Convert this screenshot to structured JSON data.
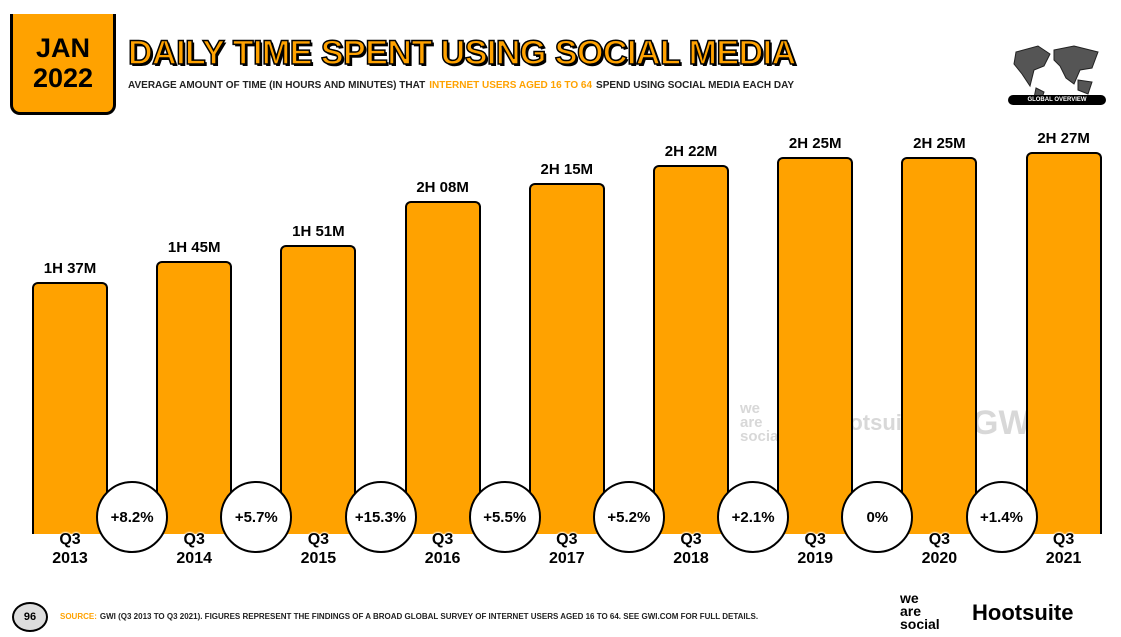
{
  "header": {
    "date": [
      "JAN",
      "2022"
    ],
    "global_overview": "GLOBAL OVERVIEW"
  },
  "chart_data": {
    "type": "bar",
    "title": "DAILY TIME SPENT USING SOCIAL MEDIA",
    "subtitle": [
      "AVERAGE AMOUNT OF TIME (IN HOURS AND MINUTES) THAT",
      "INTERNET USERS AGED 16 TO 64",
      "SPEND USING SOCIAL MEDIA EACH DAY"
    ],
    "categories": [
      "Q3\n2013",
      "Q3\n2014",
      "Q3\n2015",
      "Q3\n2016",
      "Q3\n2017",
      "Q3\n2018",
      "Q3\n2019",
      "Q3\n2020",
      "Q3\n2021"
    ],
    "values": [
      97,
      105,
      111,
      128,
      135,
      142,
      145,
      145,
      147
    ],
    "value_labels": [
      "1H 37M",
      "1H 45M",
      "1H 51M",
      "2H 08M",
      "2H 15M",
      "2H 22M",
      "2H 25M",
      "2H 25M",
      "2H 27M"
    ],
    "color": "#ffa200",
    "changes": {
      "values": [
        8.2,
        5.7,
        15.3,
        5.5,
        5.2,
        2.1,
        0,
        1.4
      ],
      "value_labels": [
        "+8.2%",
        "+5.7%",
        "+15.3%",
        "+5.5%",
        "+5.2%",
        "+2.1%",
        "0%",
        "+1.4%"
      ]
    }
  },
  "watermark": [
    "we\nare\nsocial",
    "Hootsuite",
    "GWI."
  ],
  "footer": {
    "page": "96",
    "source_label": "SOURCE:",
    "source": "GWI (Q3 2013 TO Q3 2021). FIGURES REPRESENT THE FINDINGS OF A BROAD GLOBAL SURVEY OF INTERNET USERS AGED 16 TO 64. SEE GWI.COM FOR FULL DETAILS.",
    "logos": [
      "we\nare\nsocial",
      "Hootsuite"
    ]
  }
}
